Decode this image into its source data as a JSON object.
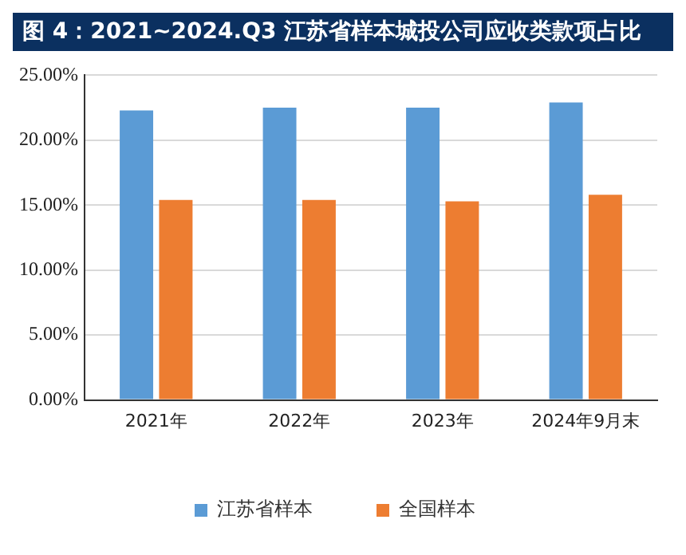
{
  "chart_data": {
    "type": "bar",
    "title": "图 4：2021~2024.Q3 江苏省样本城投公司应收类款项占比",
    "categories": [
      "2021年",
      "2022年",
      "2023年",
      "2024年9月末"
    ],
    "series": [
      {
        "name": "江苏省样本",
        "color": "#5b9bd5",
        "values": [
          22.3,
          22.5,
          22.5,
          22.9
        ]
      },
      {
        "name": "全国样本",
        "color": "#ed7d31",
        "values": [
          15.4,
          15.4,
          15.3,
          15.8
        ]
      }
    ],
    "ylim": [
      0,
      25
    ],
    "yticks": [
      {
        "value": 0,
        "label": "0.00%"
      },
      {
        "value": 5,
        "label": "5.00%"
      },
      {
        "value": 10,
        "label": "10.00%"
      },
      {
        "value": 15,
        "label": "15.00%"
      },
      {
        "value": 20,
        "label": "20.00%"
      },
      {
        "value": 25,
        "label": "25.00%"
      }
    ],
    "grid": "y",
    "legend": "bottom"
  }
}
